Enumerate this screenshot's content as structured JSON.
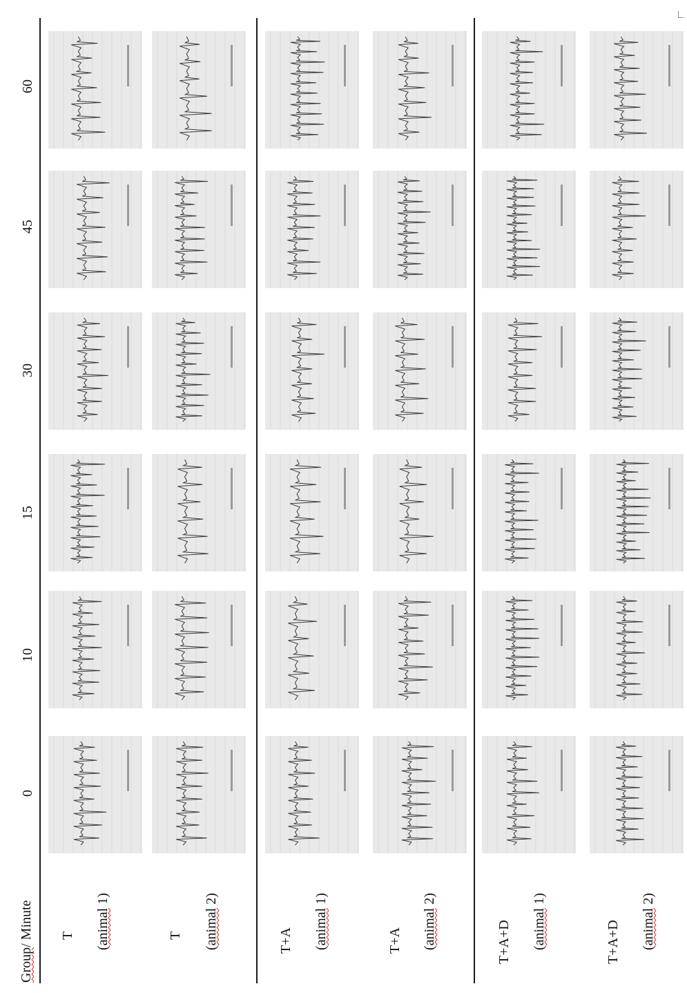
{
  "header": {
    "group_minute_prefix": "Group",
    "group_minute_suffix": "/ Minute",
    "minutes": [
      "0",
      "10",
      "15",
      "30",
      "45",
      "60"
    ]
  },
  "groups": [
    {
      "name": "T",
      "animal_prefix": "(",
      "animal_word": "animal",
      "animal_suffix": " 1)"
    },
    {
      "name": "T",
      "animal_prefix": "(",
      "animal_word": "animal",
      "animal_suffix": " 2)"
    },
    {
      "name": "T+A",
      "animal_prefix": "(",
      "animal_word": "animal",
      "animal_suffix": " 1)"
    },
    {
      "name": "T+A",
      "animal_prefix": "(",
      "animal_word": "animal",
      "animal_suffix": " 2)"
    },
    {
      "name": "T+A+D",
      "animal_prefix": "(",
      "animal_word": "animal",
      "animal_suffix": " 1)"
    },
    {
      "name": "T+A+D",
      "animal_prefix": "(",
      "animal_word": "animal",
      "animal_suffix": " 2)"
    }
  ],
  "colors": {
    "rule": "#1a1a1a",
    "paper": "#e9e9e9",
    "trace": "#3a3a3a",
    "underline": "#e01b1b"
  }
}
